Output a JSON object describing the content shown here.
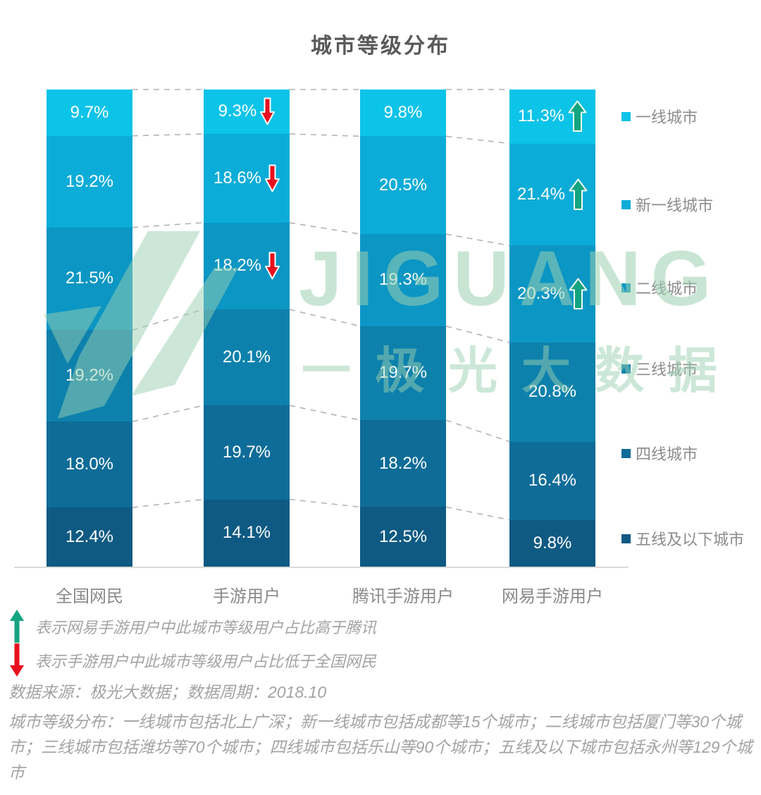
{
  "chart_data": {
    "type": "bar",
    "subtype": "stacked-percent-column",
    "title": "城市等级分布",
    "unit": "%",
    "legend_position": "right",
    "grid": false,
    "categories": [
      "全国网民",
      "手游用户",
      "腾讯手游用户",
      "网易手游用户"
    ],
    "tiers": [
      {
        "label": "一线城市",
        "color": "#0cc3e8"
      },
      {
        "label": "新一线城市",
        "color": "#0bacd8"
      },
      {
        "label": "二线城市",
        "color": "#0b96c4"
      },
      {
        "label": "三线城市",
        "color": "#0d81ac"
      },
      {
        "label": "四线城市",
        "color": "#0e6c98"
      },
      {
        "label": "五线及以下城市",
        "color": "#0f5a83"
      }
    ],
    "values": [
      [
        9.7,
        19.2,
        21.5,
        19.2,
        18.0,
        12.4
      ],
      [
        9.3,
        18.6,
        18.2,
        20.1,
        19.7,
        14.1
      ],
      [
        9.8,
        20.5,
        19.3,
        19.7,
        18.2,
        12.5
      ],
      [
        11.3,
        21.4,
        20.3,
        20.8,
        16.4,
        9.8
      ]
    ],
    "markers": [
      [
        null,
        null,
        null,
        null,
        null,
        null
      ],
      [
        "down",
        "down",
        "down",
        null,
        null,
        null
      ],
      [
        null,
        null,
        null,
        null,
        null,
        null
      ],
      [
        "up",
        "up",
        "up",
        null,
        null,
        null
      ]
    ],
    "marker_colors": {
      "up": "#13a480",
      "down": "#e8101e"
    }
  },
  "annotations": {
    "up_note": "表示网易手游用户中此城市等级用户占比高于腾讯",
    "down_note": "表示手游用户中此城市等级用户占比低于全国网民",
    "source": "数据来源：极光大数据；数据周期：2018.10",
    "description": "城市等级分布：一线城市包括北上广深；新一线城市包括成都等15个城市；二线城市包括厦门等30个城市；三线城市包括潍坊等70个城市；四线城市包括乐山等90个城市；五线及以下城市包括永州等129个城市"
  },
  "watermark": {
    "brand": "JIGUANG",
    "brand_cn": "一极光大数据",
    "color": "#9ad0b1"
  }
}
